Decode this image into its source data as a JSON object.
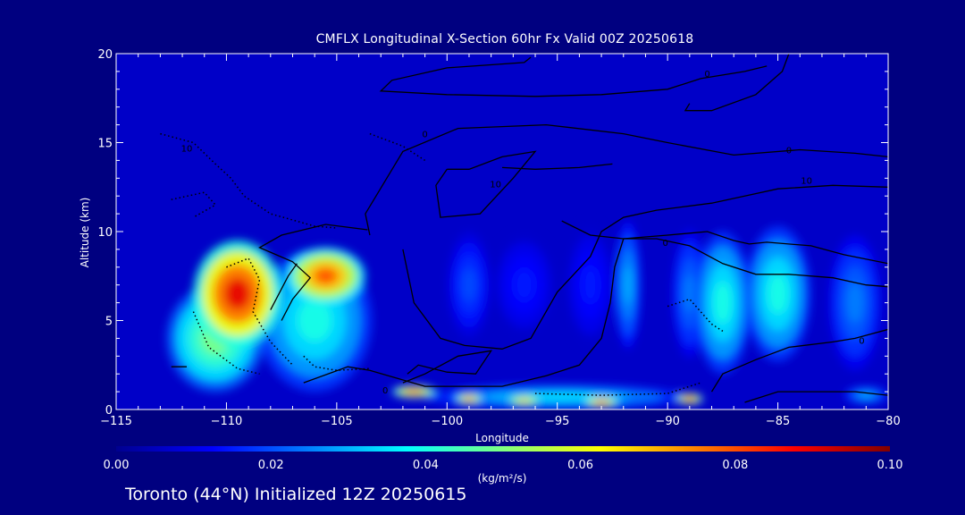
{
  "page": {
    "footer": "Toronto (44°N) Initialized 12Z 20250615"
  },
  "colors": {
    "background": "#000080",
    "plot_background": "#0000c8",
    "contour_line": "#000000",
    "axis": "#ffffff"
  },
  "chart_data": {
    "type": "heatmap",
    "title": "CMFLX Longitudinal X-Section 60hr  Fx Valid 00Z 20250618",
    "xlabel": "Longitude",
    "ylabel": "Altitude (km)",
    "xlim": [
      -115,
      -80
    ],
    "ylim": [
      0,
      20
    ],
    "x_ticks": [
      -115,
      -110,
      -105,
      -100,
      -95,
      -90,
      -85,
      -80
    ],
    "x_tick_labels": [
      "−115",
      "−110",
      "−105",
      "−100",
      "−95",
      "−90",
      "−85",
      "−80"
    ],
    "y_ticks": [
      0,
      5,
      10,
      15,
      20
    ],
    "y_tick_labels": [
      "0",
      "5",
      "10",
      "15",
      "20"
    ],
    "colorbar": {
      "min": 0.0,
      "max": 0.1,
      "ticks": [
        0.0,
        0.02,
        0.04,
        0.06,
        0.08,
        0.1
      ],
      "tick_labels": [
        "0.00",
        "0.02",
        "0.04",
        "0.06",
        "0.08",
        "0.10"
      ],
      "unit": "(kg/m²/s)",
      "colormap": [
        "#00008f",
        "#0000ff",
        "#0080ff",
        "#00ffff",
        "#80ff80",
        "#ffff00",
        "#ff8000",
        "#ff0000",
        "#800000"
      ]
    },
    "field_features": [
      {
        "lon": -109.5,
        "alt": 6.5,
        "lon_halfwidth": 2.0,
        "alt_halfwidth": 3.0,
        "value": 0.09
      },
      {
        "lon": -105.5,
        "alt": 7.5,
        "lon_halfwidth": 1.8,
        "alt_halfwidth": 1.6,
        "value": 0.08
      },
      {
        "lon": -106.0,
        "alt": 5.0,
        "lon_halfwidth": 2.6,
        "alt_halfwidth": 4.0,
        "value": 0.04
      },
      {
        "lon": -110.5,
        "alt": 4.0,
        "lon_halfwidth": 2.2,
        "alt_halfwidth": 3.0,
        "value": 0.05
      },
      {
        "lon": -99.0,
        "alt": 7.0,
        "lon_halfwidth": 1.0,
        "alt_halfwidth": 3.0,
        "value": 0.02
      },
      {
        "lon": -96.5,
        "alt": 7.0,
        "lon_halfwidth": 1.5,
        "alt_halfwidth": 3.0,
        "value": 0.015
      },
      {
        "lon": -93.5,
        "alt": 7.0,
        "lon_halfwidth": 1.2,
        "alt_halfwidth": 3.5,
        "value": 0.015
      },
      {
        "lon": -91.8,
        "alt": 7.0,
        "lon_halfwidth": 0.6,
        "alt_halfwidth": 3.6,
        "value": 0.03
      },
      {
        "lon": -89.0,
        "alt": 6.5,
        "lon_halfwidth": 0.8,
        "alt_halfwidth": 3.6,
        "value": 0.025
      },
      {
        "lon": -87.5,
        "alt": 6.0,
        "lon_halfwidth": 1.3,
        "alt_halfwidth": 4.0,
        "value": 0.04
      },
      {
        "lon": -85.0,
        "alt": 6.5,
        "lon_halfwidth": 1.5,
        "alt_halfwidth": 3.8,
        "value": 0.04
      },
      {
        "lon": -81.5,
        "alt": 6.0,
        "lon_halfwidth": 1.2,
        "alt_halfwidth": 3.8,
        "value": 0.025
      },
      {
        "lon": -101.5,
        "alt": 1.0,
        "lon_halfwidth": 1.0,
        "alt_halfwidth": 0.35,
        "value": 0.08
      },
      {
        "lon": -99.0,
        "alt": 0.6,
        "lon_halfwidth": 0.6,
        "alt_halfwidth": 0.3,
        "value": 0.08
      },
      {
        "lon": -96.5,
        "alt": 0.5,
        "lon_halfwidth": 0.8,
        "alt_halfwidth": 0.3,
        "value": 0.07
      },
      {
        "lon": -93.0,
        "alt": 0.4,
        "lon_halfwidth": 0.8,
        "alt_halfwidth": 0.3,
        "value": 0.08
      },
      {
        "lon": -89.0,
        "alt": 0.6,
        "lon_halfwidth": 0.6,
        "alt_halfwidth": 0.3,
        "value": 0.085
      },
      {
        "lon": -95.0,
        "alt": 0.7,
        "lon_halfwidth": 6.0,
        "alt_halfwidth": 0.7,
        "value": 0.035
      },
      {
        "lon": -81.0,
        "alt": 0.8,
        "lon_halfwidth": 1.0,
        "alt_halfwidth": 0.5,
        "value": 0.03
      }
    ],
    "contours": [
      {
        "style": "solid",
        "points": [
          [
            -96.2,
            19.8
          ],
          [
            -96.5,
            19.5
          ],
          [
            -100,
            19.2
          ],
          [
            -102.5,
            18.5
          ],
          [
            -103,
            17.9
          ],
          [
            -100,
            17.7
          ],
          [
            -96,
            17.6
          ],
          [
            -93,
            17.7
          ],
          [
            -90,
            18.0
          ],
          [
            -88.5,
            18.6
          ],
          [
            -86.5,
            19.0
          ],
          [
            -85.5,
            19.3
          ]
        ]
      },
      {
        "style": "solid",
        "points": [
          [
            -84.5,
            20.0
          ],
          [
            -84.8,
            19.0
          ],
          [
            -86.0,
            17.7
          ],
          [
            -88.0,
            16.8
          ],
          [
            -89.2,
            16.8
          ],
          [
            -89.0,
            17.2
          ]
        ]
      },
      {
        "style": "solid",
        "points": [
          [
            -103.5,
            9.8
          ],
          [
            -103.7,
            11.0
          ],
          [
            -102.0,
            14.5
          ],
          [
            -99.5,
            15.8
          ],
          [
            -95.5,
            16.0
          ],
          [
            -92.0,
            15.5
          ],
          [
            -90.0,
            15.0
          ],
          [
            -87.0,
            14.3
          ],
          [
            -84.0,
            14.6
          ],
          [
            -81.5,
            14.4
          ],
          [
            -80,
            14.2
          ]
        ]
      },
      {
        "style": "solid",
        "points": [
          [
            -100.0,
            13.5
          ],
          [
            -100.5,
            12.6
          ],
          [
            -100.3,
            10.8
          ],
          [
            -98.5,
            11.0
          ],
          [
            -97.0,
            13.0
          ],
          [
            -96.0,
            14.5
          ],
          [
            -97.5,
            14.2
          ],
          [
            -99.0,
            13.5
          ],
          [
            -100.0,
            13.5
          ]
        ]
      },
      {
        "style": "solid",
        "points": [
          [
            -97.5,
            13.6
          ],
          [
            -96.0,
            13.5
          ],
          [
            -94.0,
            13.6
          ],
          [
            -92.5,
            13.8
          ]
        ]
      },
      {
        "style": "solid",
        "points": [
          [
            -103.6,
            10.1
          ],
          [
            -105.5,
            10.4
          ],
          [
            -107.5,
            9.8
          ],
          [
            -108.5,
            9.1
          ],
          [
            -107.0,
            8.3
          ],
          [
            -106.2,
            7.4
          ],
          [
            -107.0,
            6.2
          ],
          [
            -107.5,
            5.0
          ]
        ]
      },
      {
        "style": "solid",
        "points": [
          [
            -102.0,
            9.0
          ],
          [
            -101.5,
            6.0
          ],
          [
            -100.3,
            4.0
          ],
          [
            -99.2,
            3.6
          ],
          [
            -97.5,
            3.4
          ],
          [
            -96.2,
            4.0
          ],
          [
            -95.0,
            6.6
          ],
          [
            -93.5,
            8.6
          ],
          [
            -93.0,
            10.0
          ],
          [
            -92.0,
            10.8
          ],
          [
            -90.5,
            11.2
          ],
          [
            -88.0,
            11.6
          ],
          [
            -86.5,
            12.0
          ],
          [
            -85.0,
            12.4
          ],
          [
            -82.5,
            12.6
          ],
          [
            -80.0,
            12.5
          ]
        ]
      },
      {
        "style": "solid",
        "points": [
          [
            -94.8,
            10.6
          ],
          [
            -93.5,
            9.8
          ],
          [
            -92.0,
            9.6
          ],
          [
            -90.0,
            9.8
          ],
          [
            -88.2,
            10.0
          ],
          [
            -87.0,
            9.5
          ],
          [
            -86.3,
            9.3
          ],
          [
            -85.5,
            9.4
          ],
          [
            -83.5,
            9.2
          ],
          [
            -82.0,
            8.7
          ],
          [
            -80.0,
            8.2
          ]
        ]
      },
      {
        "style": "solid",
        "points": [
          [
            -106.5,
            1.5
          ],
          [
            -104.5,
            2.4
          ],
          [
            -103.5,
            2.2
          ],
          [
            -101.0,
            1.3
          ],
          [
            -97.5,
            1.3
          ],
          [
            -95.5,
            1.9
          ],
          [
            -94.0,
            2.5
          ],
          [
            -93.0,
            4.0
          ],
          [
            -92.6,
            6.0
          ],
          [
            -92.4,
            8.0
          ],
          [
            -92.0,
            9.6
          ]
        ]
      },
      {
        "style": "solid",
        "points": [
          [
            -92.0,
            9.6
          ],
          [
            -90.5,
            9.6
          ],
          [
            -89.0,
            9.2
          ],
          [
            -87.5,
            8.2
          ],
          [
            -86.0,
            7.6
          ],
          [
            -84.5,
            7.6
          ],
          [
            -82.5,
            7.4
          ],
          [
            -81.0,
            7.0
          ],
          [
            -80.0,
            6.9
          ]
        ]
      },
      {
        "style": "solid",
        "points": [
          [
            -102.0,
            1.5
          ],
          [
            -101.0,
            2.0
          ],
          [
            -99.5,
            3.0
          ],
          [
            -98.0,
            3.3
          ],
          [
            -98.7,
            2.0
          ],
          [
            -100.0,
            2.1
          ],
          [
            -101.3,
            2.5
          ],
          [
            -101.8,
            2.0
          ]
        ]
      },
      {
        "style": "solid",
        "points": [
          [
            -108.0,
            5.6
          ],
          [
            -107.2,
            7.5
          ],
          [
            -106.8,
            8.2
          ]
        ]
      },
      {
        "style": "solid",
        "points": [
          [
            -88.0,
            1.0
          ],
          [
            -87.5,
            2.0
          ],
          [
            -86.0,
            2.8
          ],
          [
            -84.5,
            3.5
          ],
          [
            -82.5,
            3.8
          ],
          [
            -81.5,
            4.0
          ],
          [
            -80.0,
            4.5
          ]
        ]
      },
      {
        "style": "solid",
        "points": [
          [
            -86.5,
            0.4
          ],
          [
            -85.0,
            1.0
          ],
          [
            -83.0,
            1.0
          ],
          [
            -81.5,
            1.0
          ],
          [
            -80.0,
            0.8
          ]
        ]
      },
      {
        "style": "solid",
        "points": [
          [
            -111.8,
            2.4
          ],
          [
            -112.5,
            2.4
          ]
        ]
      },
      {
        "style": "dotted",
        "points": [
          [
            -113.0,
            15.5
          ],
          [
            -111.5,
            15.0
          ],
          [
            -110.5,
            13.8
          ],
          [
            -109.8,
            13.0
          ],
          [
            -109.2,
            12.0
          ],
          [
            -108.0,
            11.0
          ],
          [
            -106.0,
            10.3
          ],
          [
            -105.0,
            10.2
          ]
        ]
      },
      {
        "style": "dotted",
        "points": [
          [
            -112.5,
            11.8
          ],
          [
            -111.0,
            12.2
          ],
          [
            -110.5,
            11.5
          ],
          [
            -111.5,
            10.8
          ]
        ]
      },
      {
        "style": "dotted",
        "points": [
          [
            -110.0,
            8.0
          ],
          [
            -109.0,
            8.5
          ],
          [
            -108.5,
            7.3
          ],
          [
            -108.8,
            5.5
          ],
          [
            -108.0,
            3.8
          ],
          [
            -107.0,
            2.5
          ]
        ]
      },
      {
        "style": "dotted",
        "points": [
          [
            -111.5,
            5.5
          ],
          [
            -110.8,
            3.5
          ],
          [
            -109.5,
            2.3
          ],
          [
            -108.5,
            2.0
          ]
        ]
      },
      {
        "style": "dotted",
        "points": [
          [
            -106.5,
            3.0
          ],
          [
            -106.0,
            2.4
          ],
          [
            -105.0,
            2.2
          ],
          [
            -103.5,
            2.3
          ]
        ]
      },
      {
        "style": "dotted",
        "points": [
          [
            -103.5,
            15.5
          ],
          [
            -102.0,
            14.8
          ],
          [
            -101.0,
            14.0
          ]
        ]
      },
      {
        "style": "dotted",
        "points": [
          [
            -90.0,
            5.8
          ],
          [
            -89.0,
            6.2
          ],
          [
            -88.5,
            5.5
          ],
          [
            -88.0,
            4.8
          ],
          [
            -87.5,
            4.4
          ]
        ]
      },
      {
        "style": "dotted",
        "points": [
          [
            -96.0,
            0.9
          ],
          [
            -93.0,
            0.8
          ],
          [
            -90.0,
            0.9
          ],
          [
            -88.5,
            1.5
          ]
        ]
      }
    ],
    "contour_labels": [
      {
        "lon": -88.2,
        "alt": 18.9,
        "text": "0"
      },
      {
        "lon": -90.1,
        "alt": 9.4,
        "text": "0"
      },
      {
        "lon": -102.8,
        "alt": 1.1,
        "text": "0"
      },
      {
        "lon": -101.0,
        "alt": 15.5,
        "text": "0"
      },
      {
        "lon": -84.5,
        "alt": 14.6,
        "text": "0"
      },
      {
        "lon": -81.2,
        "alt": 3.9,
        "text": "0"
      },
      {
        "lon": -97.8,
        "alt": 12.7,
        "text": "10"
      },
      {
        "lon": -83.7,
        "alt": 12.9,
        "text": "10"
      },
      {
        "lon": -111.8,
        "alt": 14.7,
        "text": "10"
      }
    ]
  }
}
